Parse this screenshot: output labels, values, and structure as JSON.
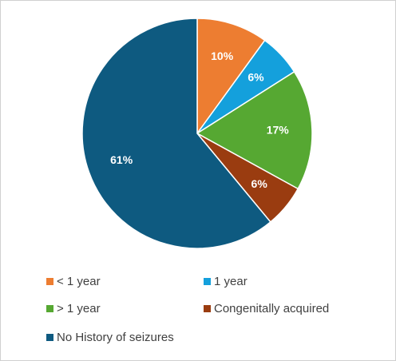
{
  "chart_data": {
    "type": "pie",
    "categories": [
      "< 1 year",
      "1 year",
      "> 1 year",
      "Congenitally acquired",
      "No History of seizures"
    ],
    "values": [
      10,
      6,
      17,
      6,
      61
    ],
    "value_labels": [
      "10%",
      "6%",
      "17%",
      "6%",
      "61%"
    ],
    "colors": [
      "#ED7D31",
      "#14A0DC",
      "#56A832",
      "#9A3C10",
      "#0E5A80"
    ],
    "legend": "bottom"
  }
}
